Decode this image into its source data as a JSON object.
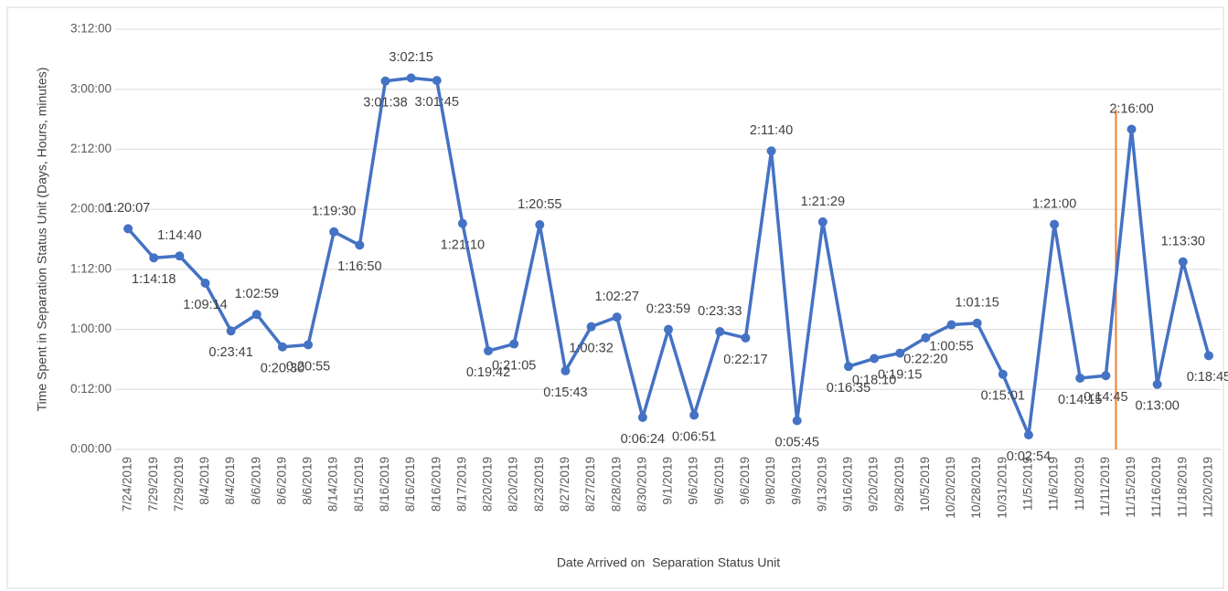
{
  "chart_data": {
    "type": "line",
    "y_label": "Time Spent in Separation Status Unit (Days, Hours, minutes)",
    "x_label": "Date Arrived on  Separation Status Unit",
    "categories": [
      "7/24/2019",
      "7/29/2019",
      "7/29/2019",
      "8/4/2019",
      "8/4/2019",
      "8/6/2019",
      "8/6/2019",
      "8/6/2019",
      "8/14/2019",
      "8/15/2019",
      "8/16/2019",
      "8/16/2019",
      "8/16/2019",
      "8/17/2019",
      "8/20/2019",
      "8/20/2019",
      "8/23/2019",
      "8/27/2019",
      "8/27/2019",
      "8/28/2019",
      "8/30/2019",
      "9/1/2019",
      "9/6/2019",
      "9/6/2019",
      "9/6/2019",
      "9/8/2019",
      "9/9/2019",
      "9/13/2019",
      "9/16/2019",
      "9/20/2019",
      "9/28/2019",
      "10/5/2019",
      "10/20/2019",
      "10/28/2019",
      "10/31/2019",
      "11/5/2019",
      "11/6/2019",
      "11/8/2019",
      "11/11/2019",
      "11/15/2019",
      "11/16/2019",
      "11/18/2019",
      "11/20/2019"
    ],
    "values": [
      1.8382,
      1.5958,
      1.6111,
      1.3847,
      0.9868,
      1.1243,
      0.8542,
      0.8715,
      1.8125,
      1.7014,
      3.0681,
      3.0938,
      3.0729,
      1.8819,
      0.8208,
      0.8785,
      1.8715,
      0.6549,
      1.0222,
      1.1021,
      0.2667,
      0.9993,
      0.2854,
      0.9813,
      0.9285,
      2.4861,
      0.2396,
      1.8951,
      0.691,
      0.7569,
      0.8021,
      0.9306,
      1.0382,
      1.0521,
      0.6257,
      0.1208,
      1.875,
      0.5938,
      0.6146,
      2.6667,
      0.5417,
      1.5625,
      0.7813
    ],
    "value_labels": [
      "1:20:07",
      "1:14:18",
      "1:14:40",
      "1:09:14",
      "0:23:41",
      "1:02:59",
      "0:20:30",
      "0:20:55",
      "1:19:30",
      "1:16:50",
      "3:01:38",
      "3:02:15",
      "3:01:45",
      "1:21:10",
      "0:19:42",
      "0:21:05",
      "1:20:55",
      "0:15:43",
      "1:00:32",
      "1:02:27",
      "0:06:24",
      "0:23:59",
      "0:06:51",
      "0:23:33",
      "0:22:17",
      "2:11:40",
      "0:05:45",
      "1:21:29",
      "0:16:35",
      "0:18:10",
      "0:19:15",
      "0:22:20",
      "1:00:55",
      "1:01:15",
      "0:15:01",
      "0:02:54",
      "1:21:00",
      "0:14:15",
      "0:14:45",
      "2:16:00",
      "0:13:00",
      "1:13:30",
      "0:18:45"
    ],
    "color": "#4472c4",
    "ylim": [
      0,
      3.5
    ],
    "yticks": [
      {
        "value": 0,
        "label": "0:00:00"
      },
      {
        "value": 0.5,
        "label": "0:12:00"
      },
      {
        "value": 1,
        "label": "1:00:00"
      },
      {
        "value": 1.5,
        "label": "1:12:00"
      },
      {
        "value": 2,
        "label": "2:00:00"
      },
      {
        "value": 2.5,
        "label": "2:12:00"
      },
      {
        "value": 3,
        "label": "3:00:00"
      },
      {
        "value": 3.5,
        "label": "3:12:00"
      }
    ],
    "grid": true
  }
}
